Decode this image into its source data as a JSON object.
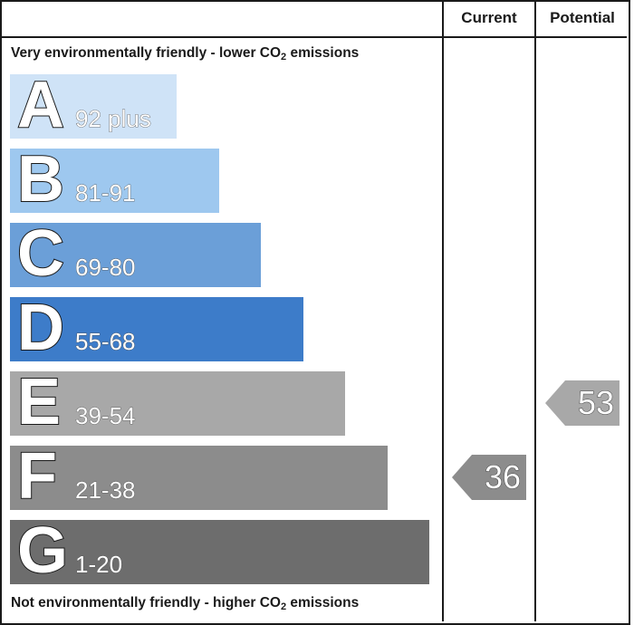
{
  "chart_data": {
    "type": "bar",
    "columns": {
      "current": "Current",
      "potential": "Potential"
    },
    "top_caption": {
      "text": "Very environmentally friendly - lower CO",
      "sub": "2",
      "tail": " emissions"
    },
    "bottom_caption": {
      "text": "Not environmentally friendly - higher CO",
      "sub": "2",
      "tail": " emissions"
    },
    "bands": [
      {
        "letter": "A",
        "range": "92 plus",
        "min": 92,
        "max": 100,
        "color": "#cfe3f7"
      },
      {
        "letter": "B",
        "range": "81-91",
        "min": 81,
        "max": 91,
        "color": "#9ec8ef"
      },
      {
        "letter": "C",
        "range": "69-80",
        "min": 69,
        "max": 80,
        "color": "#6b9fd8"
      },
      {
        "letter": "D",
        "range": "55-68",
        "min": 55,
        "max": 68,
        "color": "#3d7cc9"
      },
      {
        "letter": "E",
        "range": "39-54",
        "min": 39,
        "max": 54,
        "color": "#a8a8a8"
      },
      {
        "letter": "F",
        "range": "21-38",
        "min": 21,
        "max": 38,
        "color": "#8c8c8c"
      },
      {
        "letter": "G",
        "range": "1-20",
        "min": 1,
        "max": 20,
        "color": "#6d6d6d"
      }
    ],
    "current": {
      "value": 36,
      "band": "F",
      "color": "#8c8c8c"
    },
    "potential": {
      "value": 53,
      "band": "E",
      "color": "#a8a8a8"
    }
  }
}
